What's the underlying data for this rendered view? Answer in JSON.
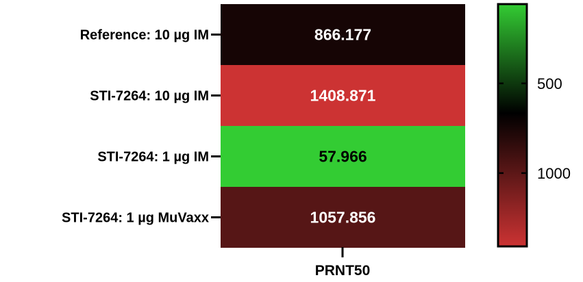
{
  "chart_data": {
    "type": "heatmap",
    "rows": [
      "Reference: 10 µg IM",
      "STI-7264: 10 µg IM",
      "STI-7264: 1 µg IM",
      "STI-7264: 1 µg MuVaxx"
    ],
    "columns": [
      "PRNT50"
    ],
    "values": [
      [
        866.177
      ],
      [
        1408.871
      ],
      [
        57.966
      ],
      [
        1057.856
      ]
    ],
    "value_labels": [
      "866.177",
      "1408.871",
      "57.966",
      "1057.856"
    ],
    "cell_label_colors": [
      "#ffffff",
      "#ffffff",
      "#000000",
      "#ffffff"
    ],
    "colorbar": {
      "ticks": [
        500,
        1000
      ],
      "tick_labels": [
        "500",
        "1000"
      ],
      "range": [
        57.966,
        1408.871
      ],
      "colors": {
        "low": "#33cc33",
        "mid": "#000000",
        "high": "#cc3333"
      }
    },
    "xlabel": "PRNT50"
  }
}
